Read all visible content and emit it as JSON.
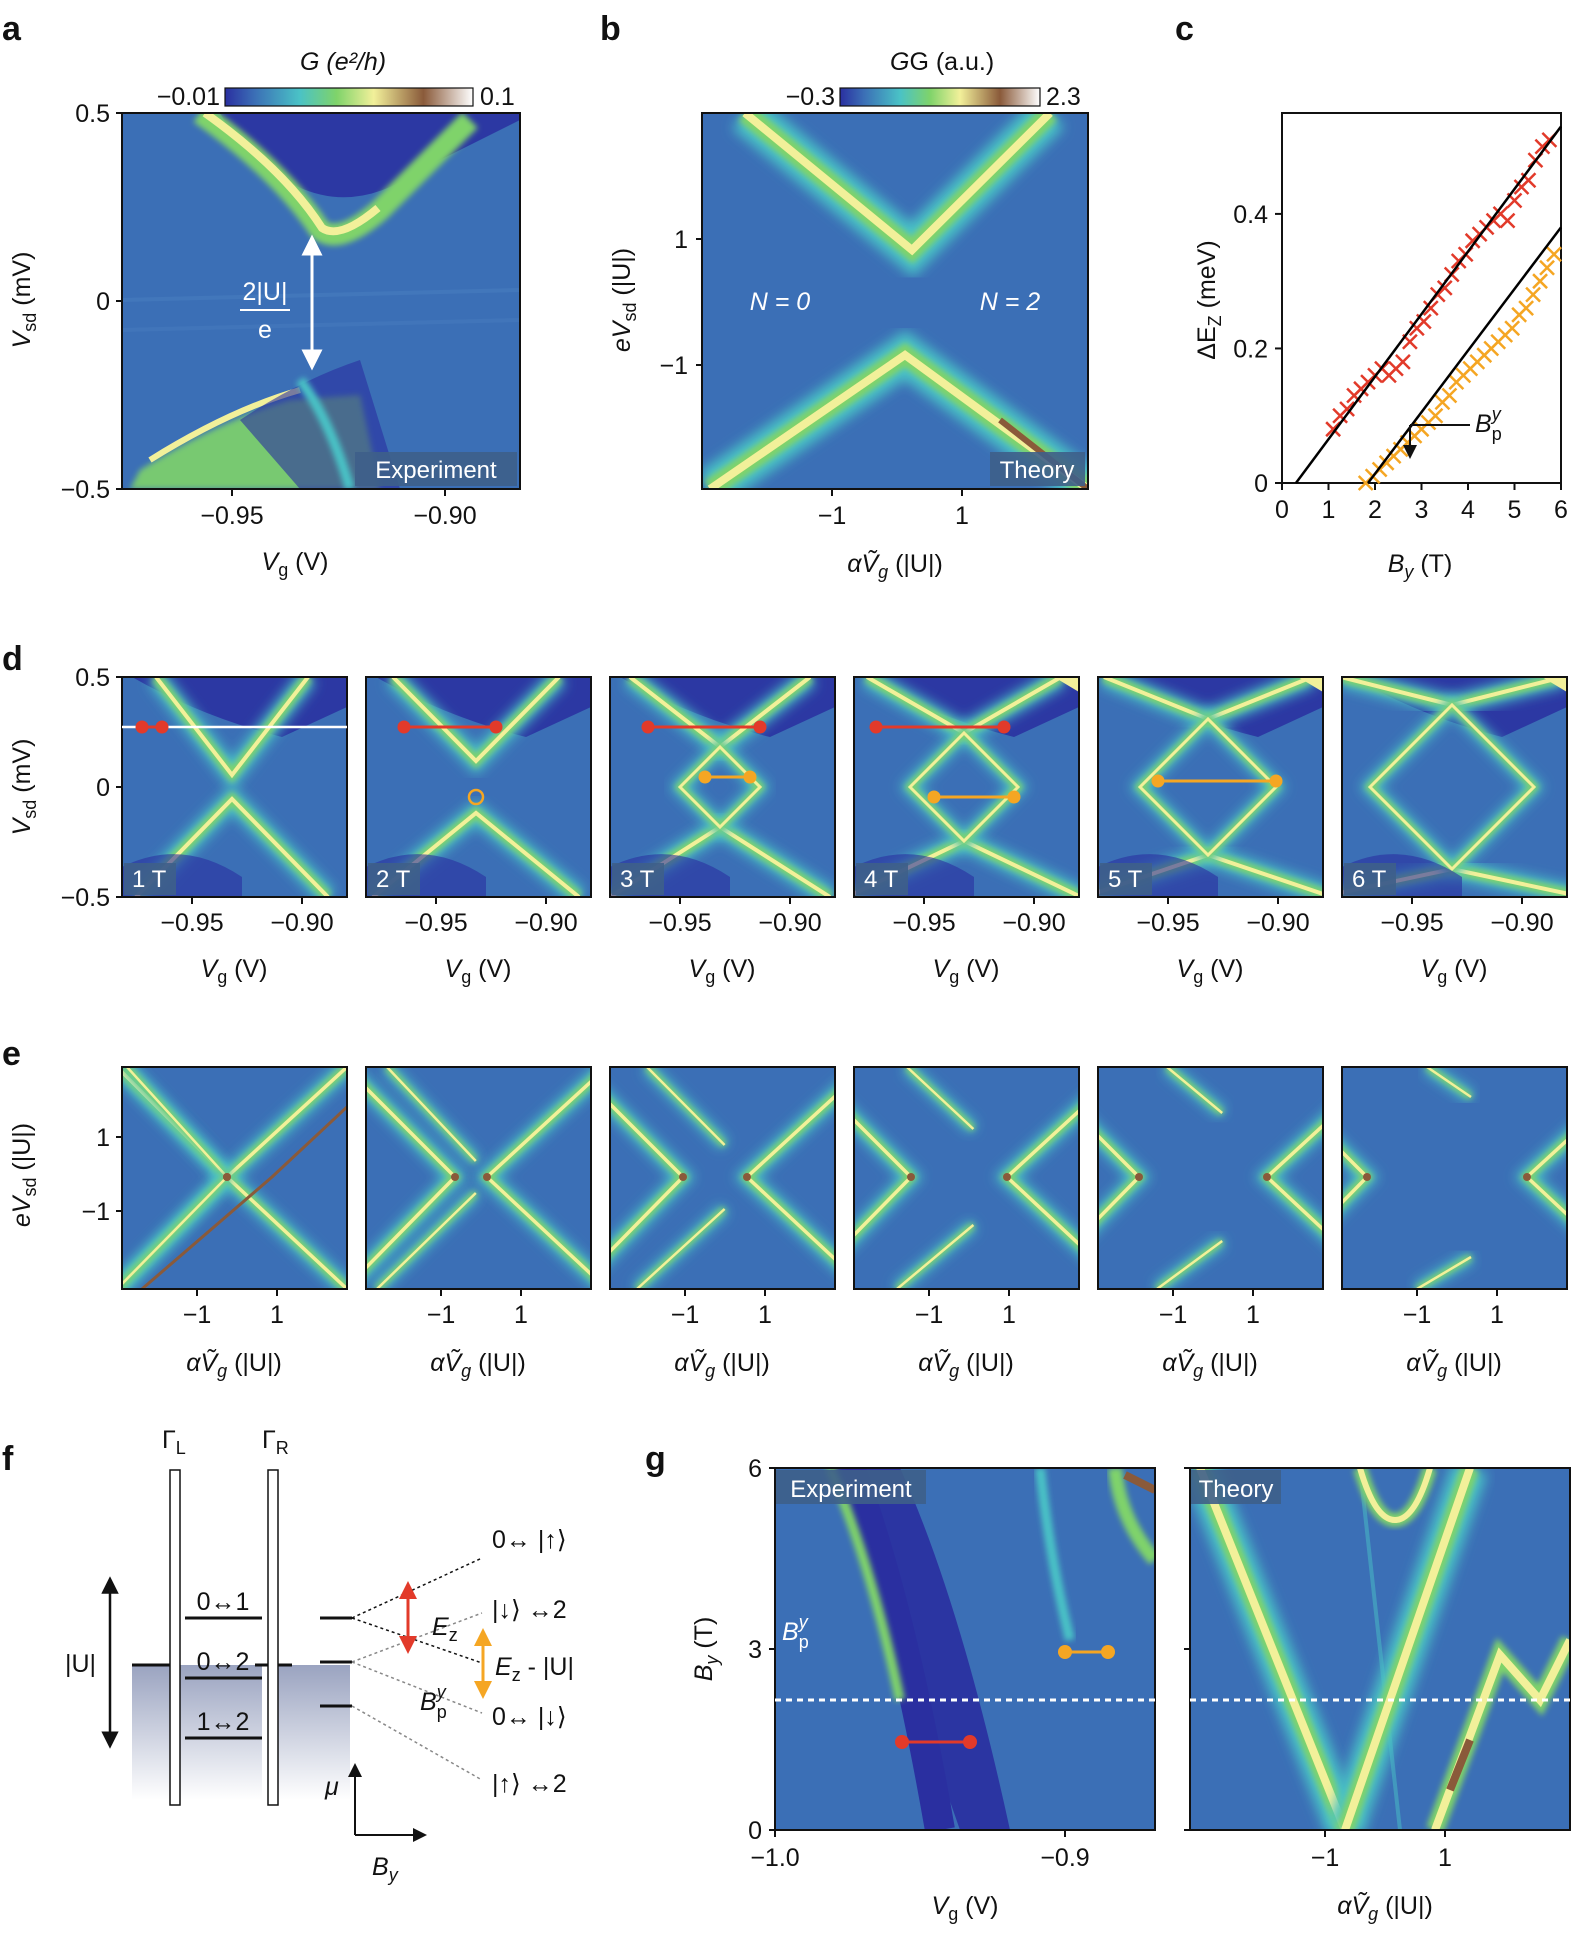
{
  "colors": {
    "background": "#3b6fb6",
    "dark": "#2a2fa0",
    "cyan": "#4ac2c6",
    "green": "#7fd36a",
    "yellow": "#f2f09a",
    "brown": "#8a5a3a",
    "white": "#ffffff",
    "red": "#e23a2a",
    "orange": "#f5a623",
    "tag_bg": "#3e5f8a"
  },
  "panel_letters": [
    "a",
    "b",
    "c",
    "d",
    "e",
    "f",
    "g"
  ],
  "panel_a": {
    "colorbar_label": "G (e²/h)",
    "colorbar_min": "−0.01",
    "colorbar_max": "0.1",
    "ylabel": "V",
    "ylabel_sub": "sd",
    "ylabel_unit": " (mV)",
    "yticks": [
      "0.5",
      "0",
      "−0.5"
    ],
    "xlabel": "V",
    "xlabel_sub": "g",
    "xlabel_unit": " (V)",
    "xticks": [
      "−0.95",
      "−0.90"
    ],
    "annotation_top": "2|U|",
    "annotation_bottom": "e",
    "tag": "Experiment"
  },
  "panel_b": {
    "colorbar_label": "G (a.u.)",
    "colorbar_min": "−0.3",
    "colorbar_max": "2.3",
    "ylabel": "eV",
    "ylabel_sub": "sd",
    "ylabel_unit": " (|U|)",
    "yticks": [
      "1",
      "−1"
    ],
    "xlabel": "αṼ",
    "xlabel_sub": "g",
    "xlabel_unit": " (|U|)",
    "xticks": [
      "−1",
      "1"
    ],
    "left_text": "N = 0",
    "right_text": "N = 2",
    "tag": "Theory"
  },
  "panel_c": {
    "ylabel": "ΔE",
    "ylabel_sub": "Z",
    "ylabel_unit": " (meV)",
    "yticks": [
      "0",
      "0.2",
      "0.4"
    ],
    "xlabel": "B",
    "xlabel_sub": "y",
    "xlabel_unit": " (T)",
    "xticks": [
      "0",
      "1",
      "2",
      "3",
      "4",
      "5",
      "6"
    ],
    "arrow_label": "B",
    "arrow_label_sub": "p",
    "arrow_label_sup": "y"
  },
  "chart_data": {
    "type": "scatter",
    "xlabel": "By (T)",
    "ylabel": "ΔEZ (meV)",
    "xlim": [
      0,
      6
    ],
    "ylim": [
      0,
      0.55
    ],
    "series": [
      {
        "color": "#e23a2a",
        "x": [
          1.1,
          1.25,
          1.4,
          1.55,
          1.7,
          1.85,
          2.0,
          2.15,
          2.3,
          2.45,
          2.6,
          2.75,
          2.9,
          3.05,
          3.2,
          3.35,
          3.5,
          3.65,
          3.8,
          3.95,
          4.1,
          4.25,
          4.4,
          4.55,
          4.7,
          4.85,
          5.0,
          5.15,
          5.3,
          5.45,
          5.6,
          5.75
        ],
        "y": [
          0.08,
          0.1,
          0.11,
          0.13,
          0.14,
          0.15,
          0.16,
          0.17,
          0.16,
          0.17,
          0.18,
          0.21,
          0.23,
          0.24,
          0.26,
          0.28,
          0.29,
          0.31,
          0.33,
          0.34,
          0.36,
          0.37,
          0.38,
          0.39,
          0.4,
          0.39,
          0.42,
          0.44,
          0.45,
          0.48,
          0.5,
          0.51
        ]
      },
      {
        "color": "#f5a623",
        "x": [
          1.8,
          1.95,
          2.1,
          2.25,
          2.4,
          2.55,
          2.7,
          2.85,
          3.0,
          3.15,
          3.3,
          3.45,
          3.6,
          3.75,
          3.9,
          4.05,
          4.2,
          4.35,
          4.5,
          4.65,
          4.8,
          4.95,
          5.1,
          5.25,
          5.4,
          5.55,
          5.7,
          5.85
        ],
        "y": [
          0.0,
          0.01,
          0.02,
          0.03,
          0.04,
          0.05,
          0.06,
          0.07,
          0.08,
          0.09,
          0.1,
          0.12,
          0.13,
          0.15,
          0.16,
          0.17,
          0.18,
          0.19,
          0.2,
          0.21,
          0.22,
          0.23,
          0.25,
          0.26,
          0.28,
          0.3,
          0.32,
          0.34
        ]
      },
      {
        "type": "line",
        "color": "#000000",
        "x": [
          0.3,
          6.0
        ],
        "y": [
          0.0,
          0.53
        ]
      },
      {
        "type": "line",
        "color": "#000000",
        "x": [
          1.85,
          6.0
        ],
        "y": [
          0.0,
          0.38
        ]
      }
    ]
  },
  "panel_d": {
    "ylabel": "V",
    "ylabel_sub": "sd",
    "ylabel_unit": " (mV)",
    "yticks": [
      "0.5",
      "0",
      "−0.5"
    ],
    "xlabel": "V",
    "xlabel_sub": "g",
    "xlabel_unit": " (V)",
    "xticks": [
      "−0.95",
      "−0.90"
    ],
    "tags": [
      "1 T",
      "2 T",
      "3 T",
      "4 T",
      "5 T",
      "6 T"
    ]
  },
  "panel_e": {
    "ylabel": "eV",
    "ylabel_sub": "sd",
    "ylabel_unit": " (|U|)",
    "yticks": [
      "1",
      "−1"
    ],
    "xlabel": "αṼ",
    "xlabel_sub": "g",
    "xlabel_unit": " (|U|)",
    "xticks": [
      "−1",
      "1"
    ]
  },
  "panel_f": {
    "gamma_l": "Γ",
    "gamma_l_sub": "L",
    "gamma_r": "Γ",
    "gamma_r_sub": "R",
    "u_label": "|U|",
    "levels": [
      "0↔1",
      "0↔2",
      "1↔2"
    ],
    "states": [
      "0↔ |↑⟩",
      "|↓⟩ ↔2",
      "0↔ |↓⟩",
      "|↑⟩ ↔2"
    ],
    "ez_label": "E",
    "ez_sub": "z",
    "ez_u_label": " - |U|",
    "bp_label": "B",
    "bp_sub": "p",
    "bp_sup": "y",
    "mu_label": "μ",
    "by_label": "B",
    "by_sub": "y"
  },
  "panel_g": {
    "ylabel": "B",
    "ylabel_sub": "y",
    "ylabel_unit": " (T)",
    "yticks": [
      "6",
      "3",
      "0"
    ],
    "left_xlabel": "V",
    "left_xlabel_sub": "g",
    "left_xlabel_unit": " (V)",
    "left_xticks": [
      "−1.0",
      "−0.9"
    ],
    "right_xlabel": "αṼ",
    "right_xlabel_sub": "g",
    "right_xlabel_unit": " (|U|)",
    "right_xticks": [
      "−1",
      "1"
    ],
    "bp_label": "B",
    "bp_sub": "p",
    "bp_sup": "y",
    "left_tag": "Experiment",
    "right_tag": "Theory"
  }
}
